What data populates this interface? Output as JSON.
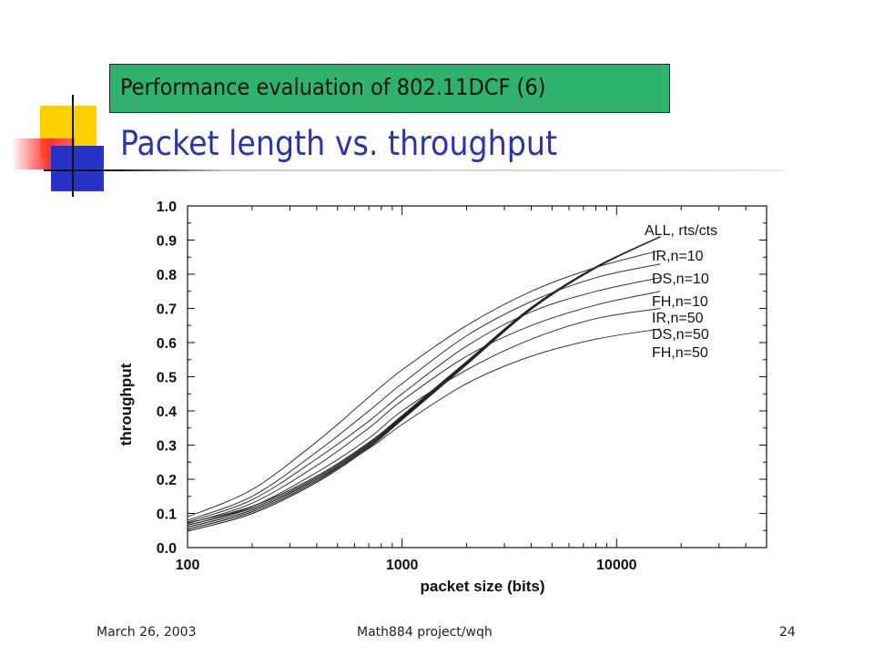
{
  "slide": {
    "header": "Performance evaluation of 802.11DCF (6)",
    "title": "Packet length vs. throughput"
  },
  "footer": {
    "date": "March 26, 2003",
    "center": "Math884 project/wqh",
    "page": "24"
  },
  "colors": {
    "title": "#2a35a8",
    "header_box": "#2fb26b",
    "deco_yellow": "#ffd000",
    "deco_red": "#ff3030",
    "deco_blue": "#2a33c8"
  },
  "chart_data": {
    "type": "line",
    "xlabel": "packet size (bits)",
    "ylabel": "throughput",
    "x_scale": "log",
    "xlim": [
      100,
      50000
    ],
    "ylim": [
      0.0,
      1.0
    ],
    "x_ticks": [
      100,
      1000,
      10000
    ],
    "x_tick_labels": [
      "100",
      "1000",
      "10000"
    ],
    "y_ticks": [
      0.0,
      0.1,
      0.2,
      0.3,
      0.4,
      0.5,
      0.6,
      0.7,
      0.8,
      0.9,
      1.0
    ],
    "y_tick_labels": [
      "0.0",
      "0.1",
      "0.2",
      "0.3",
      "0.4",
      "0.5",
      "0.6",
      "0.7",
      "0.8",
      "0.9",
      "1.0"
    ],
    "grid": false,
    "x": [
      100,
      200,
      400,
      700,
      1000,
      2000,
      4000,
      8000,
      16000
    ],
    "series": [
      {
        "name": "ALL, rts/cts",
        "values": [
          0.06,
          0.11,
          0.2,
          0.3,
          0.38,
          0.54,
          0.7,
          0.82,
          0.91
        ]
      },
      {
        "name": "IR,n=10",
        "values": [
          0.09,
          0.17,
          0.31,
          0.44,
          0.52,
          0.65,
          0.75,
          0.82,
          0.87
        ]
      },
      {
        "name": "DS,n=10",
        "values": [
          0.08,
          0.15,
          0.28,
          0.4,
          0.48,
          0.62,
          0.72,
          0.79,
          0.83
        ]
      },
      {
        "name": "FH,n=10",
        "values": [
          0.075,
          0.14,
          0.26,
          0.37,
          0.45,
          0.59,
          0.69,
          0.75,
          0.79
        ]
      },
      {
        "name": "IR,n=50",
        "values": [
          0.07,
          0.13,
          0.24,
          0.35,
          0.43,
          0.56,
          0.65,
          0.71,
          0.75
        ]
      },
      {
        "name": "DS,n=50",
        "values": [
          0.065,
          0.12,
          0.22,
          0.32,
          0.4,
          0.52,
          0.61,
          0.67,
          0.7
        ]
      },
      {
        "name": "FH,n=50",
        "values": [
          0.06,
          0.11,
          0.2,
          0.29,
          0.36,
          0.48,
          0.56,
          0.61,
          0.64
        ]
      }
    ]
  }
}
